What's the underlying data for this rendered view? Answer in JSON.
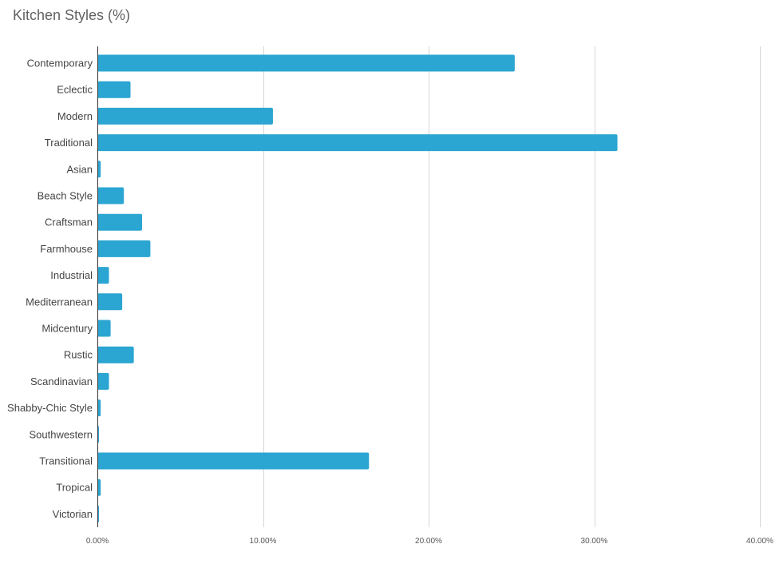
{
  "chart_data": {
    "type": "bar",
    "orientation": "horizontal",
    "title": "Kitchen Styles (%)",
    "xlabel": "",
    "ylabel": "",
    "xlim": [
      0,
      40
    ],
    "x_ticks": [
      "0.00%",
      "10.00%",
      "20.00%",
      "30.00%",
      "40.00%"
    ],
    "x_tick_values": [
      0,
      10,
      20,
      30,
      40
    ],
    "grid": true,
    "legend": "none",
    "bar_color": "#2ba5d2",
    "categories": [
      "Contemporary",
      "Eclectic",
      "Modern",
      "Traditional",
      "Asian",
      "Beach Style",
      "Craftsman",
      "Farmhouse",
      "Industrial",
      "Mediterranean",
      "Midcentury",
      "Rustic",
      "Scandinavian",
      "Shabby-Chic Style",
      "Southwestern",
      "Transitional",
      "Tropical",
      "Victorian"
    ],
    "values": [
      25.2,
      2.0,
      10.6,
      31.4,
      0.2,
      1.6,
      2.7,
      3.2,
      0.7,
      1.5,
      0.8,
      2.2,
      0.7,
      0.2,
      0.1,
      16.4,
      0.2,
      0.1
    ]
  }
}
